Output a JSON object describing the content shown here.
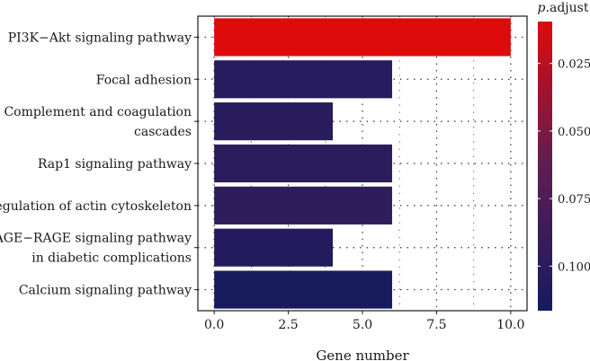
{
  "chart_data": {
    "type": "bar",
    "orientation": "horizontal",
    "categories": [
      [
        "PI3K−Akt signaling pathway"
      ],
      [
        "Focal adhesion"
      ],
      [
        "Complement and coagulation",
        "cascades"
      ],
      [
        "Rap1 signaling pathway"
      ],
      [
        "Regulation of actin cytoskeleton"
      ],
      [
        "AGE−RAGE signaling pathway",
        "in diabetic complications"
      ],
      [
        "Calcium signaling pathway"
      ]
    ],
    "values": [
      10,
      6,
      4,
      6,
      6,
      4,
      6
    ],
    "p_adjust": [
      0.0095,
      0.103,
      0.102,
      0.1,
      0.097,
      0.106,
      0.113
    ],
    "title": "",
    "xlabel": "Gene number",
    "ylabel": "",
    "xlim": [
      -0.55,
      10.55
    ],
    "xticks": [
      0,
      2.5,
      5,
      7.5,
      10
    ],
    "xtick_labels": [
      "0.0",
      "2.5",
      "5.0",
      "7.5",
      "10.0"
    ],
    "grid": "dotted",
    "legend": {
      "title_italic": "p",
      "title_rest": ".adjust",
      "placement": "right",
      "range": [
        0.0095,
        0.1165
      ],
      "ticks": [
        0.025,
        0.05,
        0.075,
        0.1
      ],
      "tick_labels": [
        "0.025",
        "0.050",
        "0.075",
        "0.100"
      ],
      "color_low": "#dd0b0b",
      "color_high": "#141b60"
    }
  }
}
